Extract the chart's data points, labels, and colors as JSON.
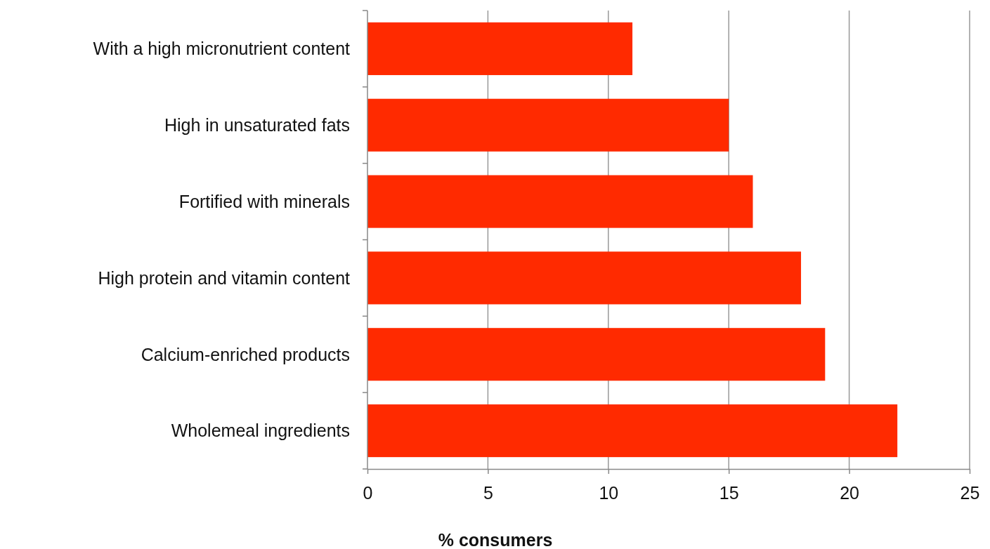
{
  "chart_data": {
    "type": "bar",
    "orientation": "horizontal",
    "xlabel": "% consumers",
    "categories": [
      "With a high micronutrient content",
      "High in unsaturated fats",
      "Fortified with minerals",
      "High protein and vitamin content",
      "Calcium-enriched products",
      "Wholemeal ingredients"
    ],
    "values": [
      11,
      15,
      16,
      18,
      19,
      22
    ],
    "color": "#ff2a00",
    "xlim": [
      0,
      25
    ],
    "xticks": [
      0,
      5,
      10,
      15,
      20,
      25
    ],
    "grid": "x"
  }
}
